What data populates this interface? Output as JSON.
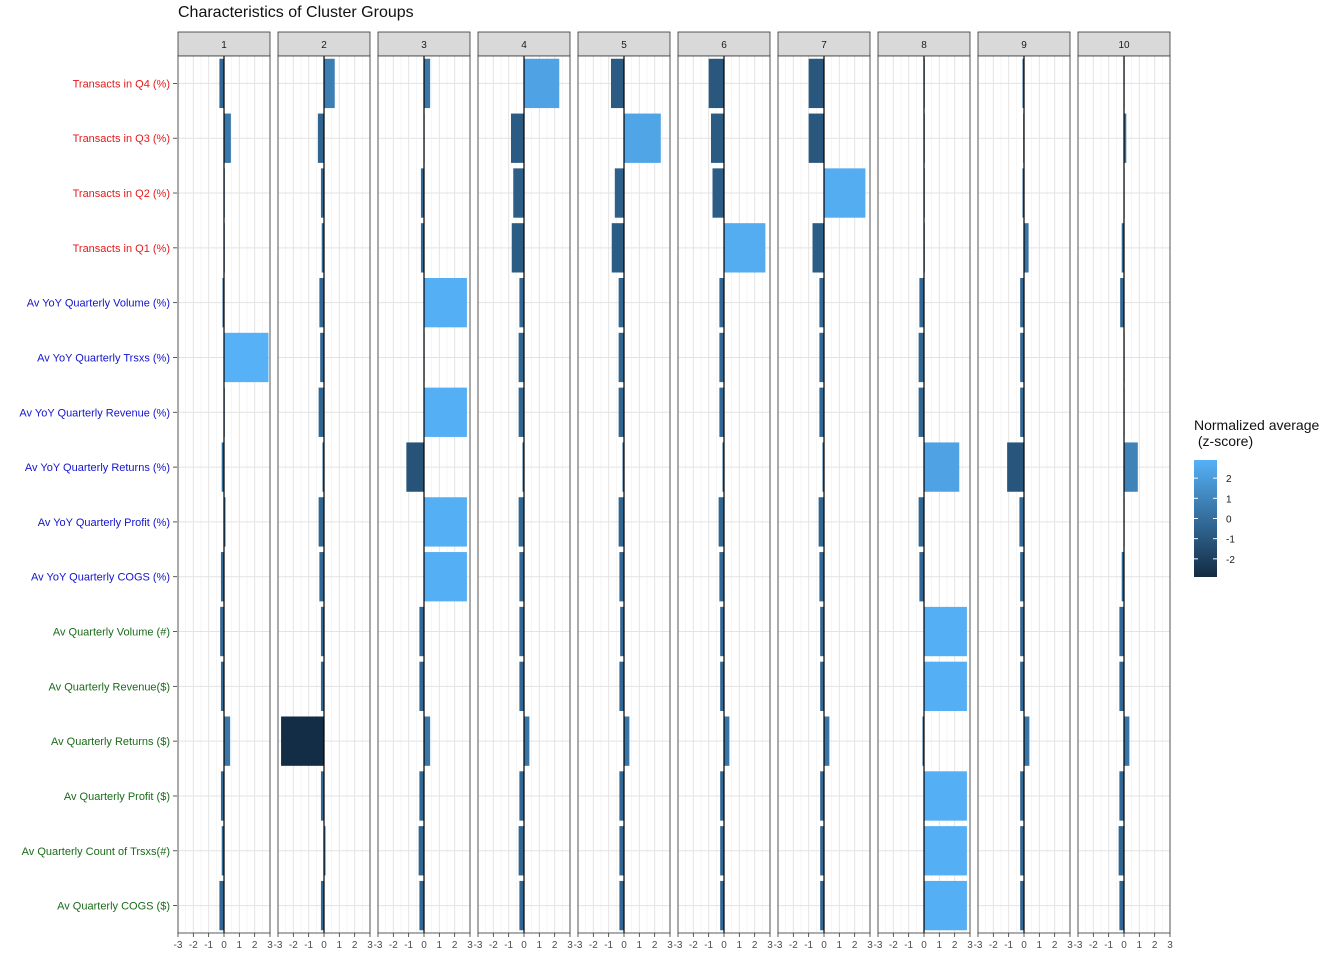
{
  "chart_data": {
    "type": "bar",
    "orientation": "horizontal",
    "title": "Characteristics of Cluster Groups",
    "facets": [
      "1",
      "2",
      "3",
      "4",
      "5",
      "6",
      "7",
      "8",
      "9",
      "10"
    ],
    "variables": [
      "Transacts in Q4 (%)",
      "Transacts in Q3 (%)",
      "Transacts in Q2 (%)",
      "Transacts in Q1 (%)",
      "Av YoY Quarterly Volume (%)",
      "Av YoY Quarterly Trsxs (%)",
      "Av YoY Quarterly Revenue (%)",
      "Av YoY Quarterly Returns (%)",
      "Av YoY Quarterly Profit (%)",
      "Av YoY Quarterly COGS (%)",
      "Av Quarterly Volume (#)",
      "Av Quarterly Revenue($)",
      "Av Quarterly Returns ($)",
      "Av Quarterly Profit ($)",
      "Av Quarterly Count of Trsxs(#)",
      "Av Quarterly COGS ($)"
    ],
    "variable_colors": [
      "#e41a1c",
      "#e41a1c",
      "#e41a1c",
      "#e41a1c",
      "#1414cc",
      "#1414cc",
      "#1414cc",
      "#1414cc",
      "#1414cc",
      "#1414cc",
      "#1a6b1a",
      "#1a6b1a",
      "#1a6b1a",
      "#1a6b1a",
      "#1a6b1a",
      "#1a6b1a"
    ],
    "values": [
      [
        -0.3,
        0.45,
        0.05,
        0.05,
        -0.1,
        2.9,
        0.05,
        -0.15,
        0.1,
        -0.2,
        -0.25,
        -0.2,
        0.4,
        -0.2,
        -0.15,
        -0.3
      ],
      [
        0.7,
        -0.4,
        -0.2,
        -0.15,
        -0.3,
        -0.25,
        -0.35,
        -0.1,
        -0.35,
        -0.3,
        -0.2,
        -0.2,
        -2.8,
        -0.2,
        0.1,
        -0.2
      ],
      [
        0.4,
        0.0,
        -0.2,
        -0.2,
        2.8,
        0.0,
        2.8,
        -1.15,
        2.8,
        2.8,
        -0.3,
        -0.3,
        0.4,
        -0.3,
        -0.35,
        -0.3
      ],
      [
        2.3,
        -0.85,
        -0.7,
        -0.8,
        -0.3,
        -0.35,
        -0.35,
        -0.1,
        -0.35,
        -0.3,
        -0.3,
        -0.3,
        0.35,
        -0.3,
        -0.35,
        -0.3
      ],
      [
        -0.85,
        2.4,
        -0.6,
        -0.8,
        -0.35,
        -0.35,
        -0.35,
        -0.1,
        -0.35,
        -0.3,
        -0.25,
        -0.3,
        0.35,
        -0.3,
        -0.3,
        -0.3
      ],
      [
        -1.0,
        -0.85,
        -0.75,
        2.7,
        -0.3,
        -0.3,
        -0.3,
        -0.1,
        -0.35,
        -0.3,
        -0.25,
        -0.25,
        0.35,
        -0.25,
        -0.25,
        -0.25
      ],
      [
        -1.0,
        -1.0,
        2.7,
        -0.75,
        -0.3,
        -0.3,
        -0.3,
        -0.1,
        -0.35,
        -0.3,
        -0.25,
        -0.25,
        0.35,
        -0.25,
        -0.25,
        -0.25
      ],
      [
        0.05,
        0.05,
        0.05,
        0.05,
        -0.3,
        -0.35,
        -0.35,
        2.3,
        -0.35,
        -0.3,
        2.8,
        2.8,
        -0.1,
        2.8,
        2.8,
        2.8
      ],
      [
        -0.1,
        -0.05,
        -0.1,
        0.3,
        -0.25,
        -0.25,
        -0.25,
        -1.1,
        -0.3,
        -0.25,
        -0.25,
        -0.25,
        0.35,
        -0.25,
        -0.25,
        -0.25
      ],
      [
        0.0,
        0.15,
        0.0,
        -0.15,
        -0.25,
        0.0,
        0.0,
        0.9,
        0.0,
        -0.15,
        -0.3,
        -0.3,
        0.35,
        -0.3,
        -0.35,
        -0.3
      ]
    ],
    "xlim": [
      -3,
      3
    ],
    "xticks": [
      -3,
      -2,
      -1,
      0,
      1,
      2,
      3
    ],
    "xtick_labels": [
      "-3",
      "-2",
      "-1",
      "0",
      "1",
      "2",
      "3"
    ],
    "fill_scale": {
      "title": "Normalized average\n (z-score)",
      "low_color": "#132b43",
      "high_color": "#56b1f7",
      "limits": [
        -2.9,
        2.9
      ],
      "breaks": [
        2,
        1,
        0,
        -1,
        -2
      ],
      "labels": [
        "2",
        "1",
        "0",
        "-1",
        "-2"
      ]
    },
    "grid": true,
    "legend_position": "right"
  }
}
